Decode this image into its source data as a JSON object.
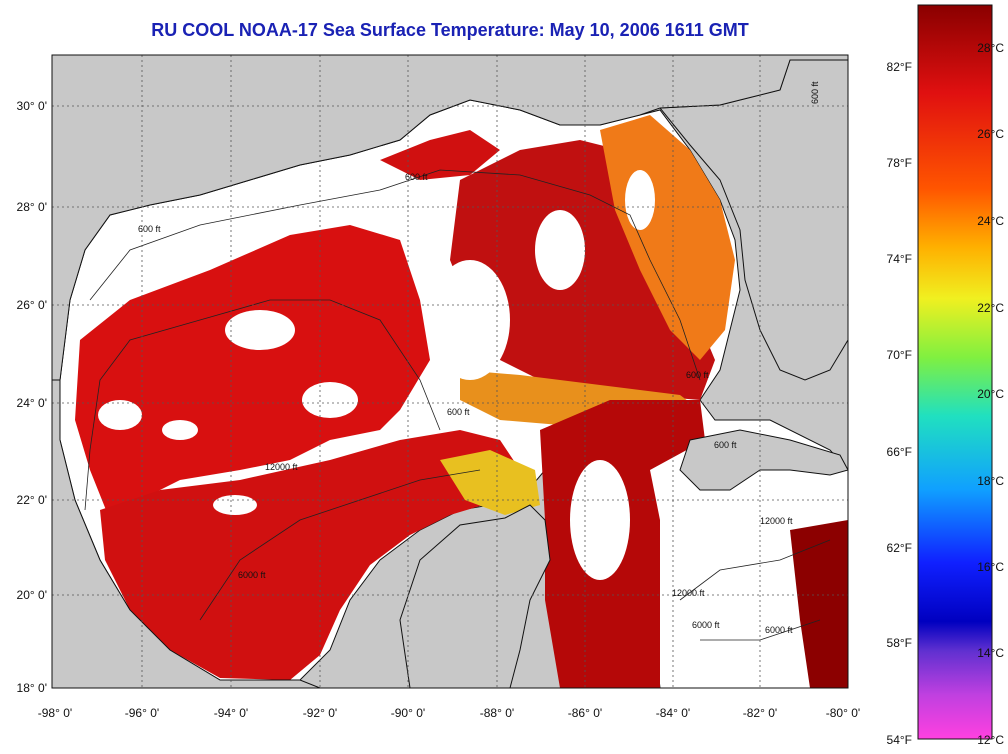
{
  "title": "RU COOL  NOAA-17  Sea Surface Temperature:  May 10, 2006 1611 GMT",
  "lon_labels": [
    "-98° 0'",
    "-96° 0'",
    "-94° 0'",
    "-92° 0'",
    "-90° 0'",
    "-88° 0'",
    "-86° 0'",
    "-84° 0'",
    "-82° 0'",
    "-80° 0'"
  ],
  "lat_labels": [
    "30° 0'",
    "28° 0'",
    "26° 0'",
    "24° 0'",
    "22° 0'",
    "20° 0'",
    "18° 0'"
  ],
  "fahrenheit_labels": [
    "82°F",
    "78°F",
    "74°F",
    "70°F",
    "66°F",
    "62°F",
    "58°F",
    "54°F"
  ],
  "celsius_labels": [
    "28°C",
    "26°C",
    "24°C",
    "22°C",
    "20°C",
    "18°C",
    "16°C",
    "14°C",
    "12°C"
  ],
  "contour_labels": {
    "ft600": "600 ft",
    "ft6000": "6000 ft",
    "ft12000": "12000 ft"
  },
  "colors": {
    "land": "#c8c8c8",
    "cloud": "#ffffff",
    "warm": "#d80f0f",
    "hot": "#9a0000",
    "orange": "#f07010",
    "yellow": "#e8d820",
    "title": "#1a22b4"
  }
}
